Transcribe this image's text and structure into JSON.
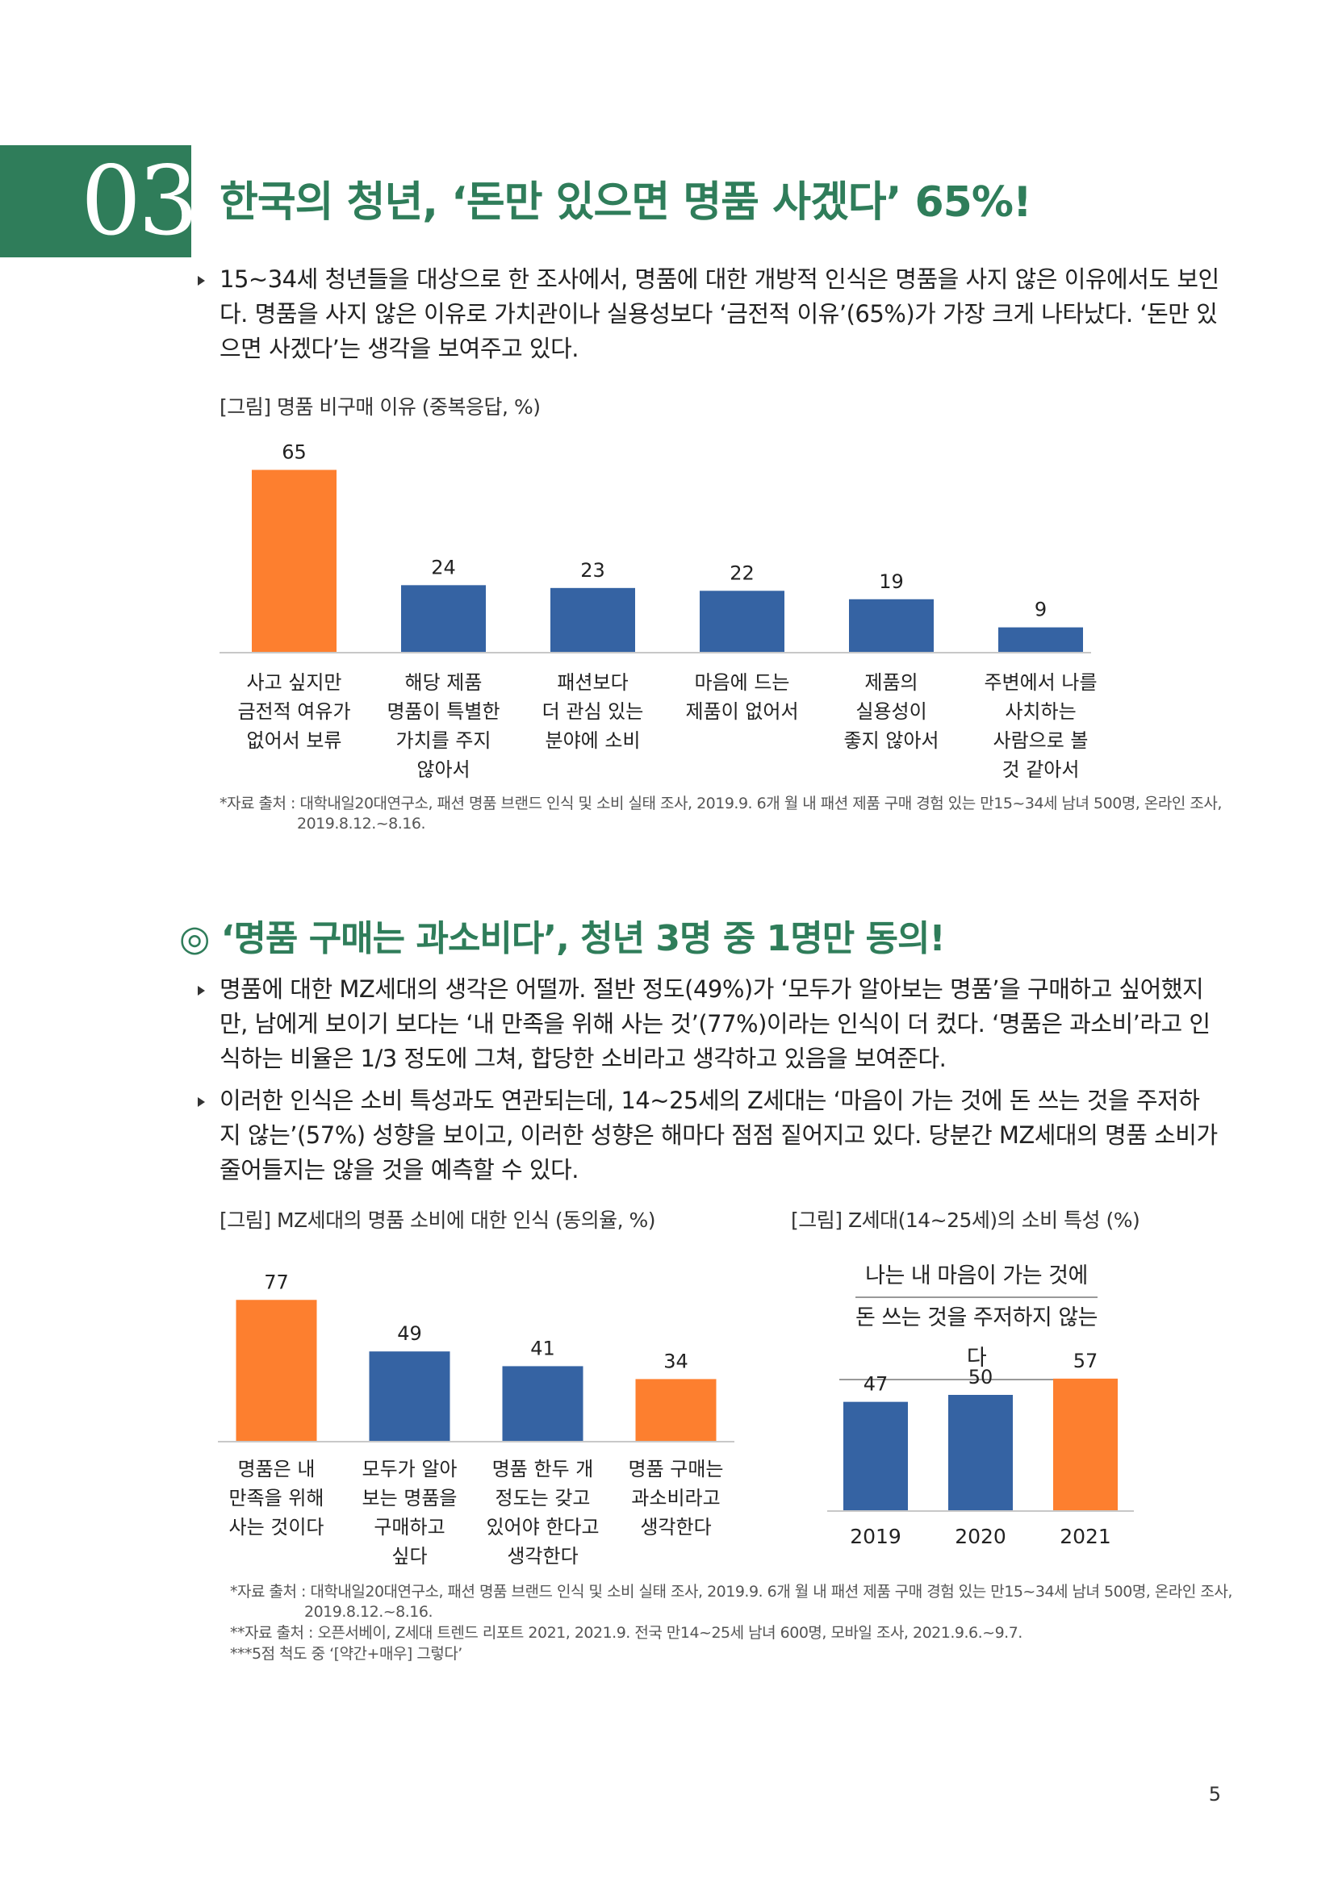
{
  "section": {
    "number": "03",
    "title": "한국의 청년, ‘돈만 있으면 명품 사겠다’ 65%!"
  },
  "para1": "15~34세 청년들을 대상으로 한 조사에서, 명품에 대한 개방적 인식은 명품을 사지 않은 이유에서도 보인다. 명품을 사지 않은 이유로 가치관이나 실용성보다 ‘금전적 이유’(65%)가 가장 크게 나타났다. ‘돈만 있으면 사겠다’는 생각을 보여주고 있다.",
  "chart1": {
    "caption": "[그림] 명품 비구매 이유 (중복응답, %)",
    "source_line1": "*자료 출처 : 대학내일20대연구소, 패션 명품 브랜드 인식 및 소비 실태 조사, 2019.9. 6개 월 내 패션 제품 구매 경험 있는 만15~34세 남녀 500명, 온라인 조사,",
    "source_line2": "2019.8.12.~8.16."
  },
  "subsection": {
    "title": "◎ ‘명품 구매는 과소비다’, 청년 3명 중 1명만 동의!"
  },
  "para2": "명품에 대한 MZ세대의 생각은 어떨까. 절반 정도(49%)가 ‘모두가 알아보는 명품’을 구매하고 싶어했지만, 남에게 보이기 보다는 ‘내 만족을 위해 사는 것’(77%)이라는 인식이 더 컸다. ‘명품은 과소비’라고 인식하는 비율은 1/3 정도에 그쳐, 합당한 소비라고 생각하고 있음을 보여준다.",
  "para3": "이러한 인식은 소비 특성과도 연관되는데, 14~25세의 Z세대는 ‘마음이 가는 것에 돈 쓰는 것을 주저하지 않는’(57%) 성향을 보이고, 이러한 성향은 해마다 점점 짙어지고 있다. 당분간 MZ세대의 명품 소비가 줄어들지는 않을 것을 예측할 수 있다.",
  "chart2": {
    "caption": "[그림] MZ세대의 명품 소비에 대한 인식 (동의율, %)"
  },
  "chart3": {
    "caption": "[그림] Z세대(14~25세)의 소비 특성 (%)",
    "title_line1": "나는 내 마음이 가는 것에",
    "title_line2": "돈 쓰는 것을 주저하지 않는다"
  },
  "sources2": {
    "line1": "*자료 출처 : 대학내일20대연구소, 패션 명품 브랜드 인식 및 소비 실태 조사, 2019.9. 6개 월 내 패션 제품 구매 경험 있는 만15~34세 남녀 500명, 온라인 조사,",
    "line2": "2019.8.12.~8.16.",
    "line3": "**자료 출처 : 오픈서베이, Z세대 트렌드 리포트 2021, 2021.9. 전국 만14~25세 남녀 600명, 모바일 조사, 2021.9.6.~9.7.",
    "line4": "***5점 척도 중 ‘[약간+매우] 그렇다’"
  },
  "page_number": "5",
  "colors": {
    "green": "#2f7d5a",
    "orange": "#fd7f2f",
    "blue": "#3563a3"
  },
  "chart_data": [
    {
      "type": "bar",
      "categories": [
        [
          "사고 싶지만",
          "금전적 여유가",
          "없어서 보류"
        ],
        [
          "해당 제품",
          "명품이 특별한",
          "가치를 주지",
          "않아서"
        ],
        [
          "패션보다",
          "더 관심 있는",
          "분야에 소비"
        ],
        [
          "마음에 드는",
          "제품이 없어서"
        ],
        [
          "제품의",
          "실용성이",
          "좋지 않아서"
        ],
        [
          "주변에서 나를",
          "사치하는",
          "사람으로 볼",
          "것 같아서"
        ]
      ],
      "values": [
        65,
        24,
        23,
        22,
        19,
        9
      ],
      "bar_colors": [
        "#fd7f2f",
        "#3563a3",
        "#3563a3",
        "#3563a3",
        "#3563a3",
        "#3563a3"
      ],
      "ylim": [
        0,
        70
      ]
    },
    {
      "type": "bar",
      "categories": [
        [
          "명품은 내",
          "만족을 위해",
          "사는 것이다"
        ],
        [
          "모두가 알아",
          "보는 명품을",
          "구매하고",
          "싶다"
        ],
        [
          "명품 한두 개",
          "정도는 갖고",
          "있어야 한다고",
          "생각한다"
        ],
        [
          "명품 구매는",
          "과소비라고",
          "생각한다"
        ]
      ],
      "values": [
        77,
        49,
        41,
        34
      ],
      "bar_colors": [
        "#fd7f2f",
        "#3563a3",
        "#3563a3",
        "#fd7f2f"
      ],
      "ylim": [
        0,
        85
      ]
    },
    {
      "type": "bar",
      "categories": [
        "2019",
        "2020",
        "2021"
      ],
      "values": [
        47,
        50,
        57
      ],
      "bar_colors": [
        "#3563a3",
        "#3563a3",
        "#fd7f2f"
      ],
      "ylim": [
        0,
        100
      ]
    }
  ]
}
